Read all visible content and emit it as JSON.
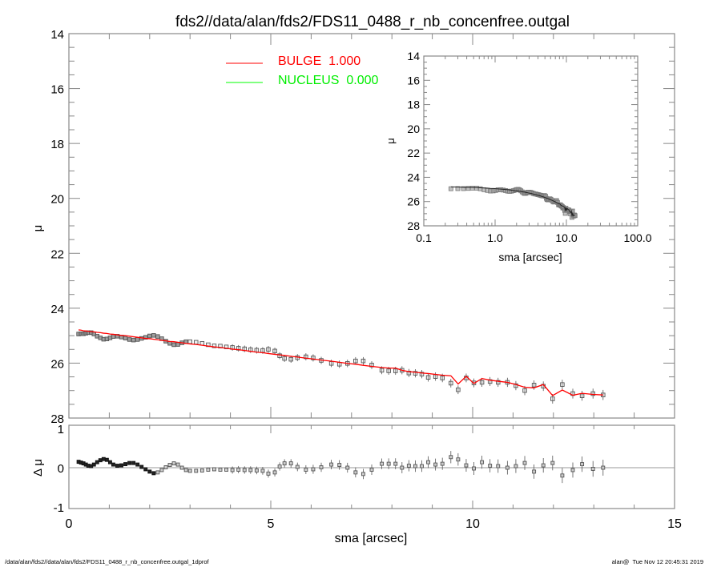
{
  "chart_data": [
    {
      "type": "scatter",
      "panel": "main",
      "title": "fds2//data/alan/fds2/FDS11_0488_r_nb_concenfree.outgal",
      "ylabel": "μ",
      "xlabel": "sma [arcsec]",
      "xlim": [
        0,
        15
      ],
      "ylim": [
        28,
        14
      ],
      "y_inverted": true,
      "xticks": [
        "0",
        "5",
        "10",
        "15"
      ],
      "yticks": [
        "14",
        "16",
        "18",
        "20",
        "22",
        "24",
        "26",
        "28"
      ],
      "legend": [
        {
          "label": "BULGE  1.000",
          "color": "#ff0000"
        },
        {
          "label": "NUCLEUS  0.000",
          "color": "#00ff00"
        }
      ],
      "legend_placement": "top-left",
      "sma": [
        0.24,
        0.3,
        0.36,
        0.42,
        0.48,
        0.55,
        0.62,
        0.7,
        0.78,
        0.86,
        0.94,
        1.02,
        1.1,
        1.2,
        1.3,
        1.4,
        1.5,
        1.6,
        1.7,
        1.8,
        1.9,
        2.0,
        2.1,
        2.2,
        2.3,
        2.4,
        2.5,
        2.6,
        2.7,
        2.8,
        2.9,
        3.0,
        3.15,
        3.3,
        3.45,
        3.6,
        3.75,
        3.9,
        4.05,
        4.2,
        4.35,
        4.5,
        4.65,
        4.8,
        4.94,
        5.1,
        5.22,
        5.34,
        5.5,
        5.66,
        5.87,
        6.05,
        6.25,
        6.5,
        6.7,
        6.9,
        7.1,
        7.29,
        7.5,
        7.75,
        7.92,
        8.09,
        8.25,
        8.42,
        8.58,
        8.74,
        8.9,
        9.08,
        9.25,
        9.46,
        9.64,
        9.84,
        10.03,
        10.23,
        10.43,
        10.63,
        10.86,
        11.07,
        11.29,
        11.52,
        11.75,
        11.98,
        12.22,
        12.48,
        12.71,
        12.98,
        13.23
      ],
      "model_bulge": [
        24.79,
        24.8,
        24.82,
        24.83,
        24.84,
        24.85,
        24.86,
        24.88,
        24.89,
        24.91,
        24.92,
        24.94,
        24.95,
        24.97,
        24.99,
        25.0,
        25.02,
        25.04,
        25.06,
        25.08,
        25.1,
        25.11,
        25.13,
        25.15,
        25.17,
        25.19,
        25.21,
        25.22,
        25.24,
        25.26,
        25.28,
        25.3,
        25.32,
        25.35,
        25.38,
        25.41,
        25.43,
        25.46,
        25.49,
        25.51,
        25.54,
        25.57,
        25.6,
        25.62,
        25.65,
        25.68,
        25.7,
        25.72,
        25.75,
        25.78,
        25.82,
        25.85,
        25.89,
        25.93,
        25.97,
        26.01,
        26.04,
        26.08,
        26.12,
        26.16,
        26.18,
        26.18,
        26.26,
        26.31,
        26.33,
        26.36,
        26.38,
        26.41,
        26.44,
        26.46,
        26.76,
        26.48,
        26.74,
        26.56,
        26.62,
        26.66,
        26.7,
        26.78,
        26.88,
        26.9,
        26.78,
        27.18,
        26.98,
        27.17,
        27.1,
        27.14,
        27.16
      ],
      "residual": [
        0.15,
        0.13,
        0.11,
        0.08,
        0.05,
        0.04,
        0.08,
        0.14,
        0.19,
        0.22,
        0.2,
        0.14,
        0.08,
        0.05,
        0.06,
        0.09,
        0.12,
        0.12,
        0.08,
        0.02,
        -0.04,
        -0.1,
        -0.14,
        -0.12,
        -0.06,
        0.01,
        0.07,
        0.11,
        0.08,
        0.0,
        -0.06,
        -0.08,
        -0.08,
        -0.07,
        -0.05,
        -0.04,
        -0.05,
        -0.05,
        -0.06,
        -0.05,
        -0.06,
        -0.06,
        -0.07,
        -0.08,
        -0.15,
        -0.12,
        0.03,
        0.11,
        0.11,
        0.02,
        -0.05,
        -0.04,
        0.01,
        0.08,
        0.07,
        0.0,
        -0.12,
        -0.16,
        -0.05,
        0.1,
        0.1,
        0.1,
        0.0,
        0.05,
        0.04,
        0.04,
        0.14,
        0.08,
        0.1,
        0.27,
        0.21,
        0.06,
        -0.02,
        0.14,
        0.05,
        0.04,
        0.0,
        0.04,
        0.12,
        -0.1,
        0.06,
        0.12,
        -0.2,
        -0.06,
        0.09,
        -0.03,
        0.0
      ]
    },
    {
      "type": "scatter",
      "panel": "residual",
      "ylabel": "Δ μ",
      "xlim": [
        0,
        15
      ],
      "ylim": [
        -1,
        1
      ],
      "yticks": [
        "-1",
        "0",
        "1"
      ],
      "xlabel": "sma [arcsec]"
    },
    {
      "type": "scatter",
      "panel": "inset",
      "ylabel": "μ",
      "xlabel": "sma [arcsec]",
      "xscale": "log",
      "xlim": [
        0.1,
        100
      ],
      "ylim": [
        28,
        14
      ],
      "xticks": [
        "0.1",
        "1.0",
        "10.0",
        "100.0"
      ],
      "yticks": [
        "14",
        "16",
        "18",
        "20",
        "22",
        "24",
        "26",
        "28"
      ]
    }
  ],
  "footer": {
    "left": "/data/alan/fds2//data/alan/fds2/FDS11_0488_r_nb_concenfree.outgal_1dprof",
    "right": "alan@  Tue Nov 12 20:45:31 2019"
  },
  "colors": {
    "bulge": "#ff0000",
    "nucleus": "#00ff00",
    "data": "#666666",
    "axis": "#888888"
  }
}
